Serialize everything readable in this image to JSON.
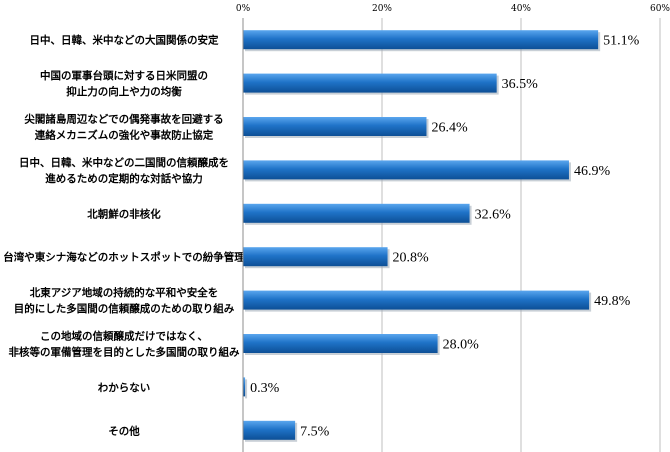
{
  "chart_data": {
    "type": "bar",
    "orientation": "horizontal",
    "categories": [
      [
        "日中、日韓、米中などの大国関係の安定"
      ],
      [
        "中国の軍事台頭に対する日米同盟の",
        "抑止力の向上や力の均衡"
      ],
      [
        "尖閣諸島周辺などでの偶発事故を回避する",
        "連絡メカニズムの強化や事故防止協定"
      ],
      [
        "日中、日韓、米中などの二国間の信頼醸成を",
        "進めるための定期的な対話や協力"
      ],
      [
        "北朝鮮の非核化"
      ],
      [
        "台湾や東シナ海などのホットスポットでの紛争管理"
      ],
      [
        "北東アジア地域の持続的な平和や安全を",
        "目的にした多国間の信頼醸成のための取り組み"
      ],
      [
        "この地域の信頼醸成だけではなく、",
        "非核等の軍備管理を目的とした多国間の取り組み"
      ],
      [
        "わからない"
      ],
      [
        "その他"
      ]
    ],
    "values": [
      51.1,
      36.5,
      26.4,
      46.9,
      32.6,
      20.8,
      49.8,
      28.0,
      0.3,
      7.5
    ],
    "value_labels": [
      "51.1%",
      "36.5%",
      "26.4%",
      "46.9%",
      "32.6%",
      "20.8%",
      "49.8%",
      "28.0%",
      "0.3%",
      "7.5%"
    ],
    "xlim": [
      0,
      60
    ],
    "xticks": [
      0,
      20,
      40,
      60
    ],
    "xtick_labels": [
      "0%",
      "20%",
      "40%",
      "60%"
    ],
    "grid": true,
    "bar_color": "#1f73c8",
    "bar_color_light": "#5aa6ee",
    "bar_color_dark": "#0d4f96"
  }
}
